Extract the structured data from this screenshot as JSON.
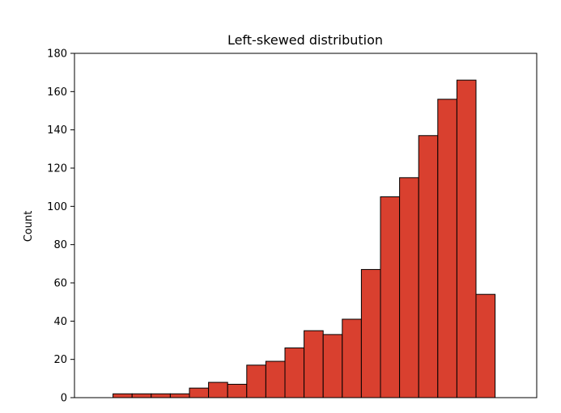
{
  "chart_data": {
    "type": "bar",
    "title": "Left-skewed distribution",
    "xlabel": "",
    "ylabel": "Count",
    "ylim": [
      0,
      180
    ],
    "yticks": [
      0,
      20,
      40,
      60,
      80,
      100,
      120,
      140,
      160,
      180
    ],
    "xticks": [],
    "grid": false,
    "legend": null,
    "bar_color": "#d9402f",
    "edge_color": "#000000",
    "values": [
      0,
      2,
      2,
      2,
      2,
      5,
      8,
      7,
      17,
      19,
      26,
      35,
      33,
      41,
      67,
      105,
      115,
      137,
      156,
      166,
      54,
      0
    ]
  }
}
